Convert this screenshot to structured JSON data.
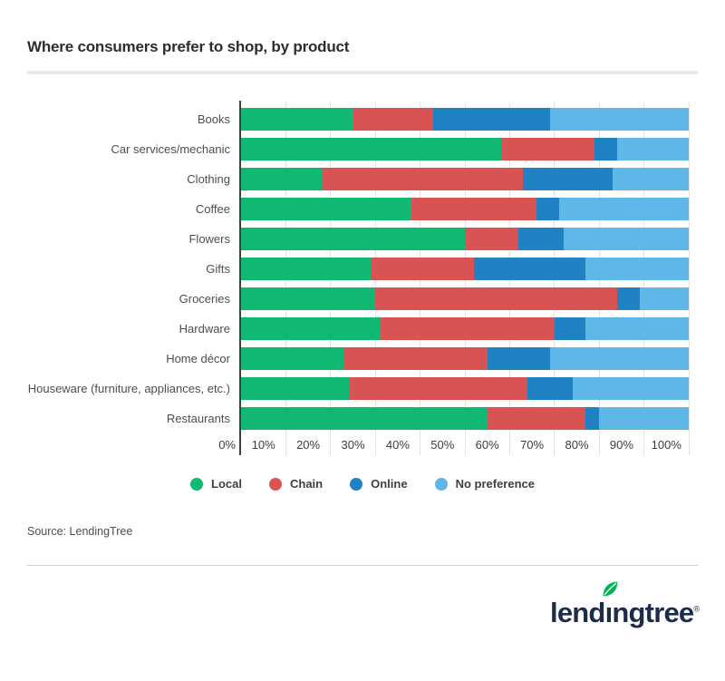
{
  "title": "Where consumers prefer to shop, by product",
  "source": "Source: LendingTree",
  "colors": {
    "local": "#10b873",
    "chain": "#d85454",
    "online": "#2082c2",
    "no_preference": "#5eb7e6",
    "axis_line": "#404040",
    "gridline": "#e3e3e3",
    "logo_navy": "#1c2c4a",
    "leaf_green": "#00b551"
  },
  "chart_data": {
    "type": "bar",
    "stacked": true,
    "orientation": "horizontal",
    "title": "Where consumers prefer to shop, by product",
    "categories": [
      "Books",
      "Car services/mechanic",
      "Clothing",
      "Coffee",
      "Flowers",
      "Gifts",
      "Groceries",
      "Hardware",
      "Home décor",
      "Houseware (furniture, appliances, etc.)",
      "Restaurants"
    ],
    "series": [
      {
        "name": "Local",
        "color": "#10b873",
        "values": [
          25,
          58,
          18,
          38,
          50,
          29,
          30,
          31,
          23,
          24,
          55
        ]
      },
      {
        "name": "Chain",
        "color": "#d85454",
        "values": [
          18,
          21,
          45,
          28,
          12,
          23,
          54,
          39,
          32,
          40,
          22
        ]
      },
      {
        "name": "Online",
        "color": "#2082c2",
        "values": [
          26,
          5,
          20,
          5,
          10,
          25,
          5,
          7,
          14,
          10,
          3
        ]
      },
      {
        "name": "No preference",
        "color": "#5eb7e6",
        "values": [
          31,
          16,
          17,
          29,
          28,
          23,
          11,
          23,
          31,
          26,
          20
        ]
      }
    ],
    "x_tick_labels": [
      "0%",
      "10%",
      "20%",
      "30%",
      "40%",
      "50%",
      "60%",
      "70%",
      "80%",
      "90%",
      "100%"
    ],
    "xlim": [
      0,
      100
    ],
    "grid": true,
    "legend_position": "bottom"
  },
  "logo": {
    "full_text": "lendingtree",
    "pre": "lend",
    "istem": "ı",
    "post": "ngtree",
    "reg": "®"
  }
}
